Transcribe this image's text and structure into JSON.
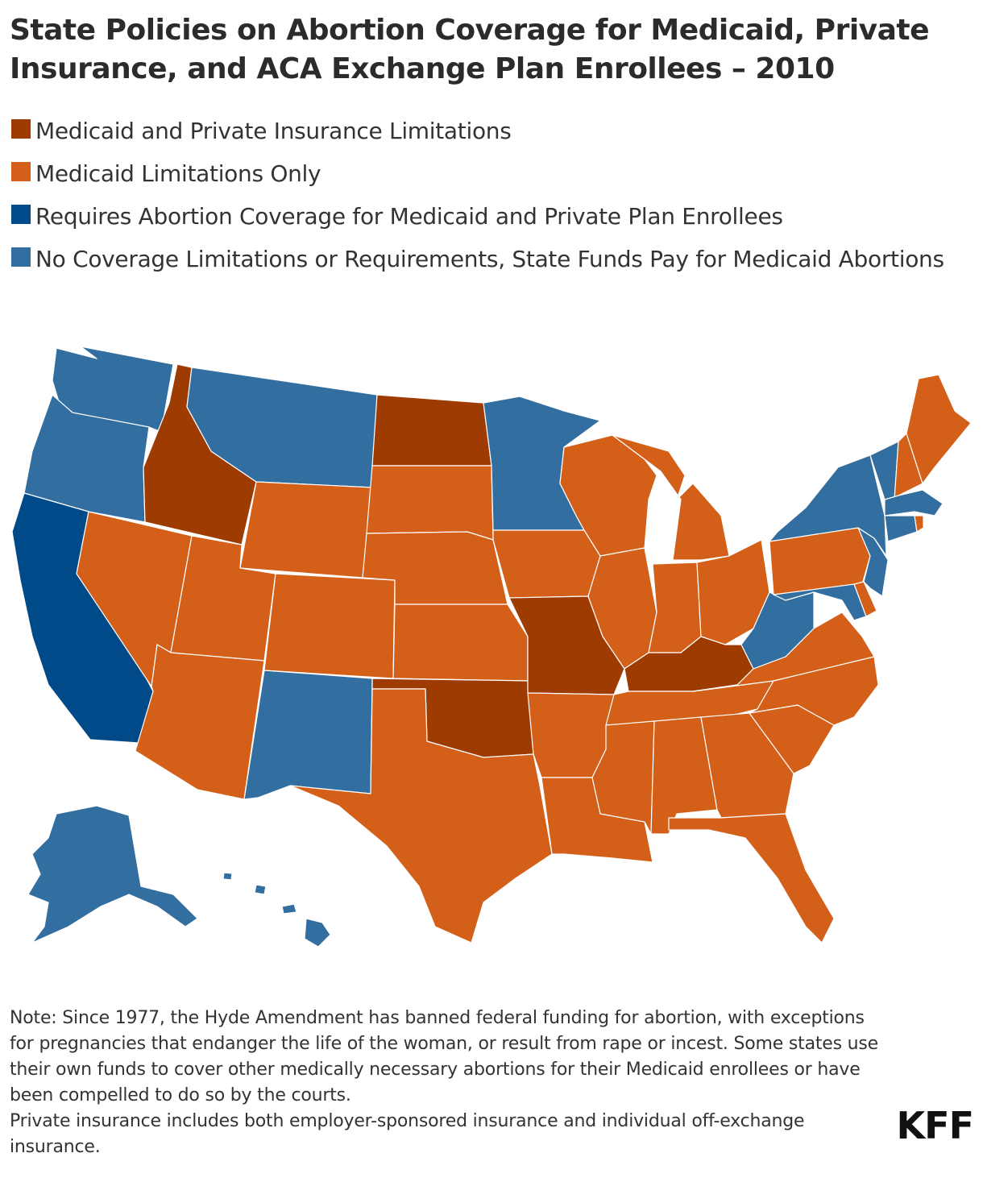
{
  "title": "State Policies on Abortion Coverage for Medicaid, Private Insurance, and ACA Exchange Plan Enrollees – 2010",
  "legend": [
    {
      "label": "Medicaid and Private Insurance Limitations",
      "color": "#9e3b00"
    },
    {
      "label": "Medicaid Limitations Only",
      "color": "#d35f18"
    },
    {
      "label": "Requires Abortion Coverage for Medicaid and Private Plan Enrollees",
      "color": "#004a89"
    },
    {
      "label": "No Coverage Limitations or Requirements, State Funds Pay for Medicaid Abortions",
      "color": "#336ea0"
    }
  ],
  "categories": {
    "medicaid_and_private": [
      "Idaho",
      "North Dakota",
      "Missouri",
      "Oklahoma",
      "Kentucky"
    ],
    "medicaid_only": [
      "Nevada",
      "Utah",
      "Arizona",
      "Wyoming",
      "Colorado",
      "South Dakota",
      "Nebraska",
      "Kansas",
      "Texas",
      "Iowa",
      "Arkansas",
      "Louisiana",
      "Wisconsin",
      "Illinois",
      "Michigan",
      "Indiana",
      "Ohio",
      "Tennessee",
      "Mississippi",
      "Alabama",
      "Georgia",
      "Florida",
      "South Carolina",
      "North Carolina",
      "Virginia",
      "Pennsylvania",
      "Maine",
      "New Hampshire",
      "Delaware",
      "Rhode Island"
    ],
    "requires_coverage": [
      "California"
    ],
    "no_limitations": [
      "Washington",
      "Oregon",
      "Montana",
      "New Mexico",
      "Minnesota",
      "Alaska",
      "Hawaii",
      "New York",
      "Vermont",
      "Massachusetts",
      "Connecticut",
      "New Jersey",
      "Maryland",
      "West Virginia"
    ]
  },
  "note": [
    "Note: Since 1977, the Hyde Amendment has banned federal funding for abortion, with exceptions for pregnancies that endanger the life of the woman, or result from rape or incest. Some states use their own funds to cover other medically necessary abortions for their Medicaid enrollees or have been compelled to do so by the courts.",
    "Private insurance includes both employer-sponsored insurance and individual off-exchange insurance."
  ],
  "logo": "KFF"
}
